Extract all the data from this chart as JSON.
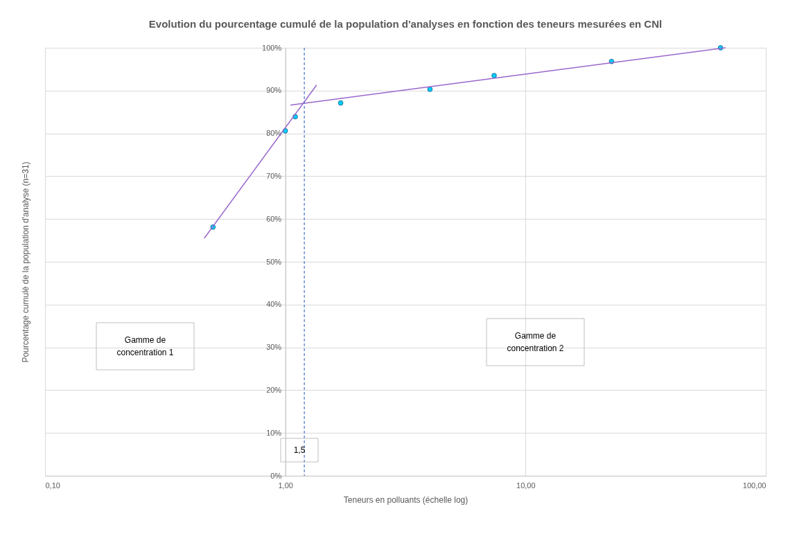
{
  "chart_data": {
    "type": "scatter",
    "title": "Evolution du pourcentage cumulé de la population d'analyses en fonction des teneurs mesurées en CNl",
    "xlabel": "Teneurs en polluants (échelle log)",
    "ylabel": "Pourcentage cumulé de la population d'analyse (n=31)",
    "log": "x",
    "xlim": [
      0.1,
      100
    ],
    "xticks": [
      {
        "value": 0.1,
        "label": "0,10"
      },
      {
        "value": 1,
        "label": "1,00"
      },
      {
        "value": 10,
        "label": "10,00"
      },
      {
        "value": 100,
        "label": "100,00"
      }
    ],
    "ylim": [
      0,
      100
    ],
    "yticks": [
      {
        "value": 0,
        "label": "0%"
      },
      {
        "value": 10,
        "label": "10%"
      },
      {
        "value": 20,
        "label": "20%"
      },
      {
        "value": 30,
        "label": "30%"
      },
      {
        "value": 40,
        "label": "40%"
      },
      {
        "value": 50,
        "label": "50%"
      },
      {
        "value": 60,
        "label": "60%"
      },
      {
        "value": 70,
        "label": "70%"
      },
      {
        "value": 80,
        "label": "80%"
      },
      {
        "value": 90,
        "label": "90%"
      },
      {
        "value": 100,
        "label": "100%"
      }
    ],
    "grid": true,
    "legend": false,
    "series": [
      {
        "type": "scatter",
        "marker": "circle",
        "color": "#00d0f5",
        "x": [
          0.5,
          1.0,
          1.1,
          1.7,
          4.0,
          7.4,
          22.8,
          64.8
        ],
        "values": [
          58.1,
          80.6,
          83.9,
          87.1,
          90.3,
          93.5,
          96.8,
          100
        ]
      },
      {
        "type": "line",
        "color": "#9966cc",
        "x": [
          0.46,
          1.35
        ],
        "values": [
          55.5,
          91.3
        ]
      },
      {
        "type": "line",
        "color": "#9966cc",
        "x": [
          1.05,
          68
        ],
        "values": [
          86.6,
          100
        ]
      }
    ],
    "ref_lines": [
      {
        "axis": "x",
        "value": 1.2,
        "color": "#4472c4",
        "line_style": "dashed"
      }
    ],
    "annotations": [
      "Gamme de concentration 1",
      "Gamme de concentration 2",
      "1,5"
    ]
  }
}
